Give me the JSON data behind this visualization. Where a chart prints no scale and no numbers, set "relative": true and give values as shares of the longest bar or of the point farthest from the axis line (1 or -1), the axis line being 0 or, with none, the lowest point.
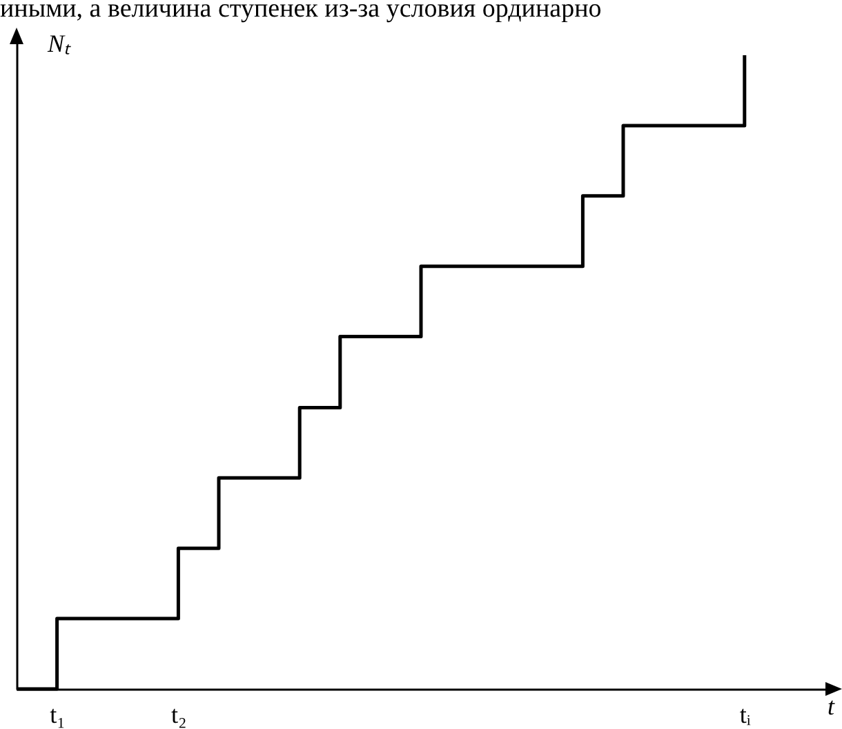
{
  "chart_data": {
    "type": "step",
    "relative": true,
    "ylabel": "Nₜ",
    "xlabel": "t",
    "annotations": [
      "иными, а величина ступенек из-за условия ординарно"
    ],
    "categories": [
      null,
      "t₁",
      null,
      null,
      "t₂",
      null,
      null,
      null,
      null,
      null,
      null,
      null,
      null,
      null,
      null,
      null,
      null,
      null,
      "tᵢ",
      null,
      null
    ],
    "series": [
      {
        "color": "#000000",
        "values": [
          0,
          0.111,
          0.111,
          0.111,
          0.222,
          0.333,
          0.333,
          0.444,
          0.556,
          0.556,
          0.667,
          0.667,
          0.667,
          0.667,
          0.778,
          0.889,
          0.889,
          0.889,
          1,
          null,
          null
        ]
      }
    ],
    "grid": false
  }
}
